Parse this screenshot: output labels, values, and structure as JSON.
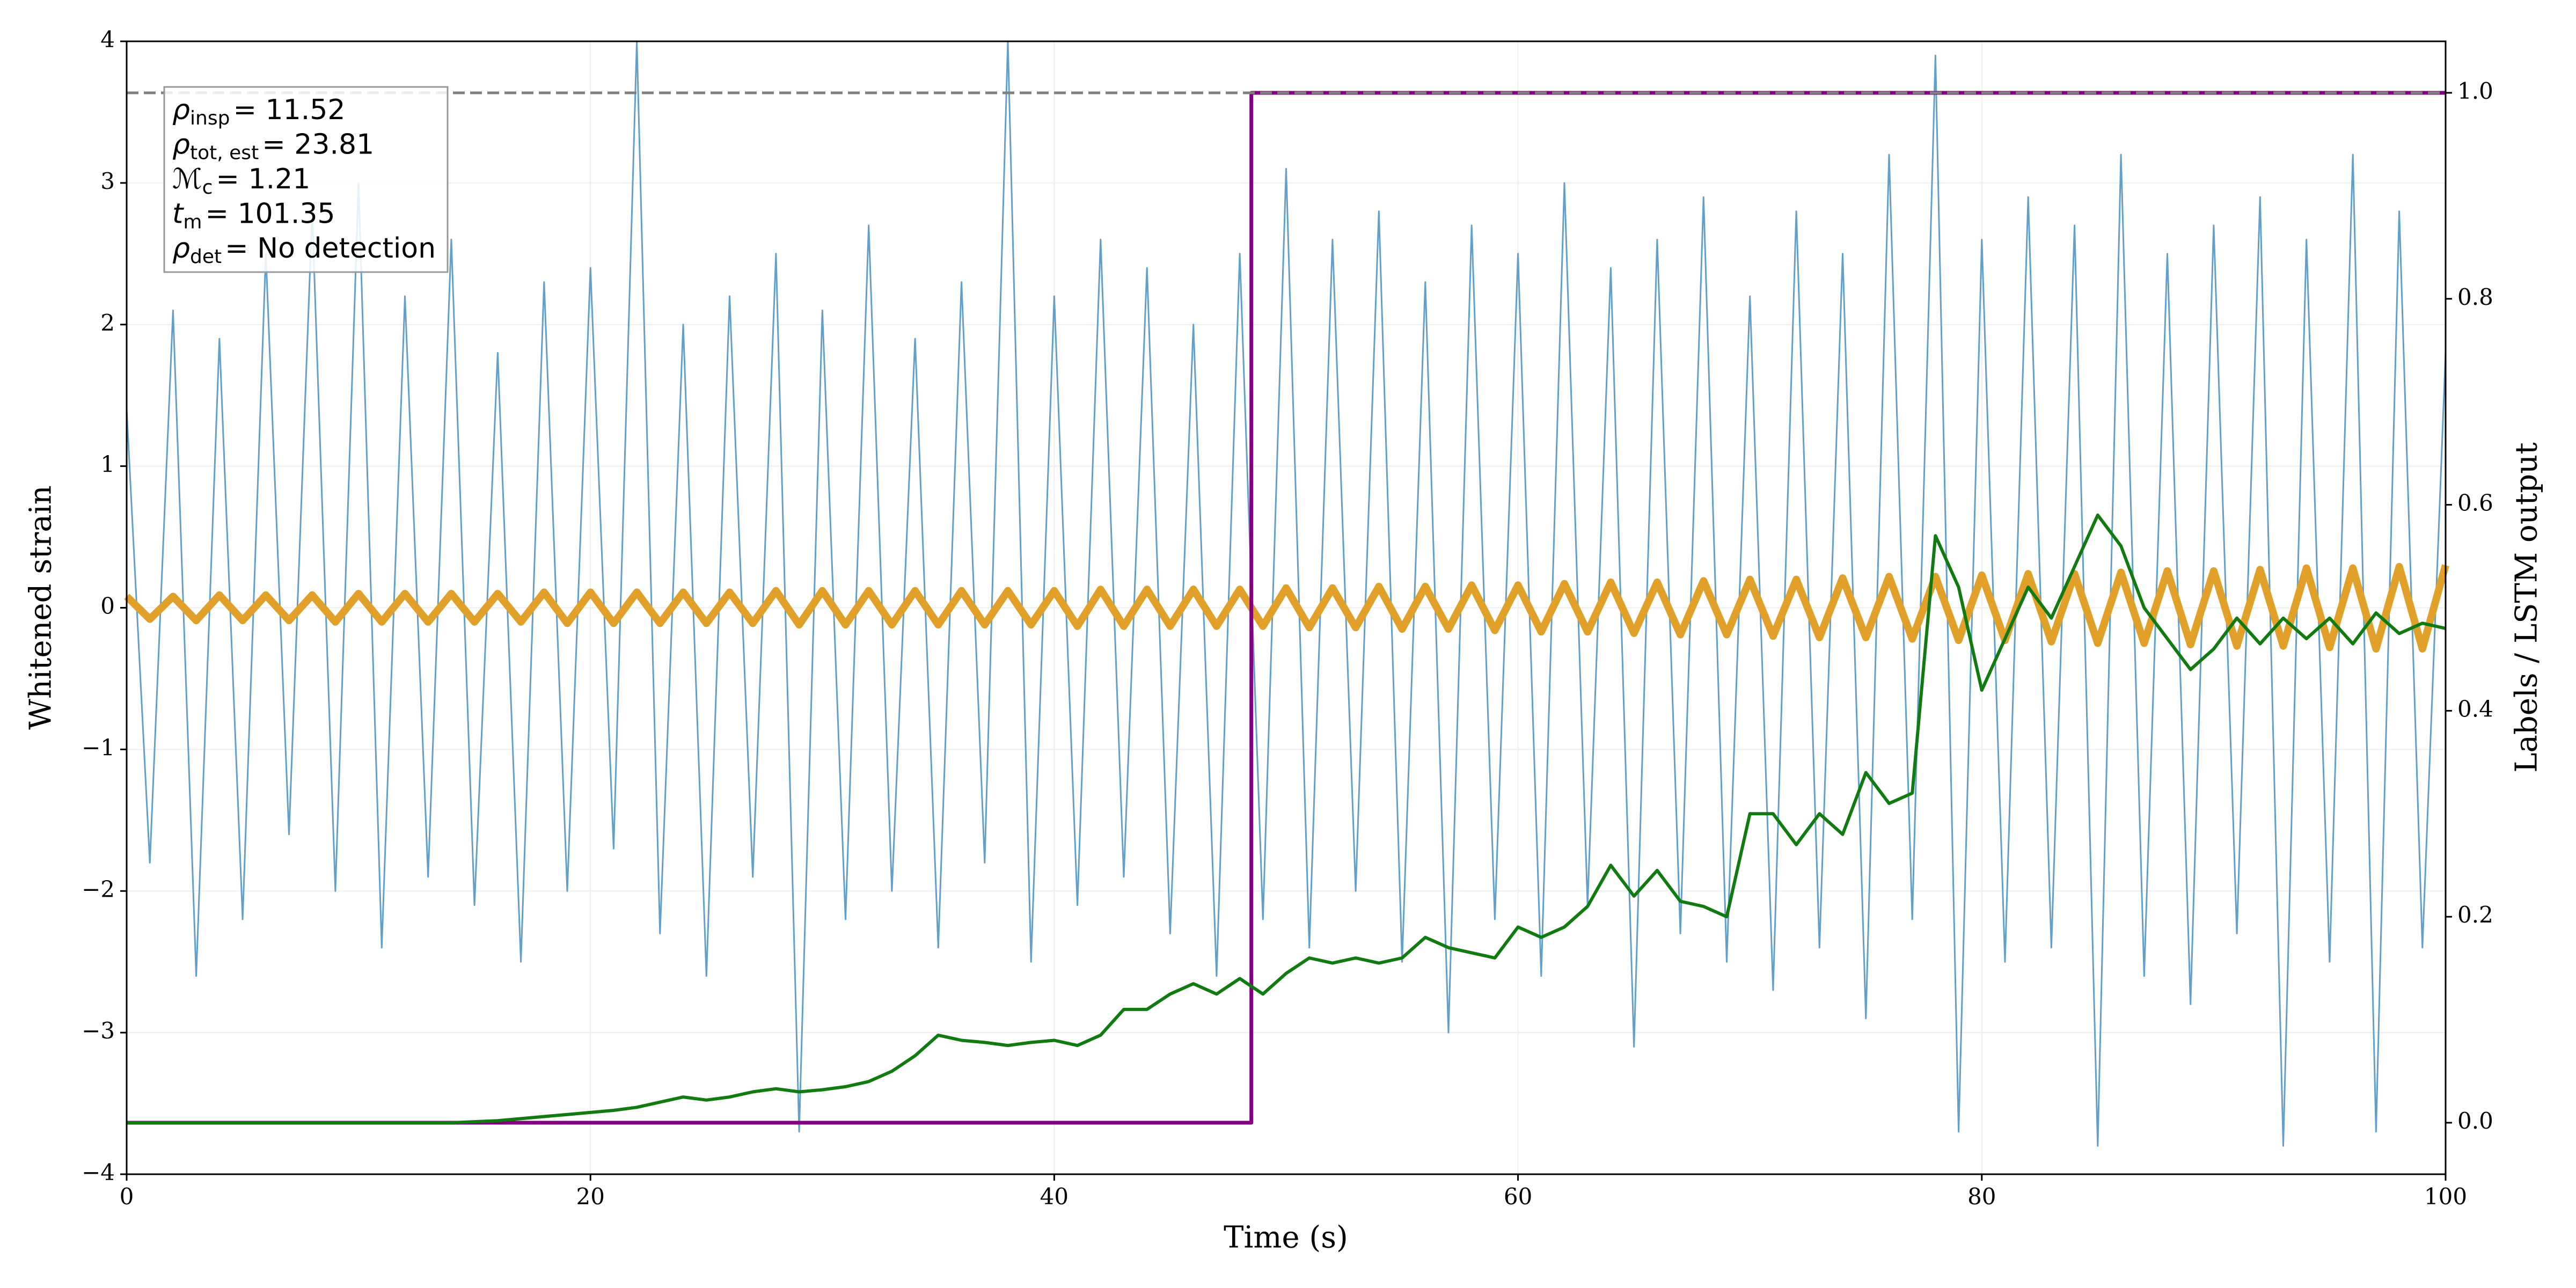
{
  "chart_data": {
    "type": "line",
    "xlabel": "Time (s)",
    "ylabel": "Whitened strain",
    "y2label": "Labels / LSTM output",
    "xlim": [
      0,
      100
    ],
    "xticks": [
      0,
      20,
      40,
      60,
      80,
      100
    ],
    "ylim": [
      -4,
      4
    ],
    "yticks": [
      {
        "value": -4,
        "label": "−4"
      },
      {
        "value": -3,
        "label": "−3"
      },
      {
        "value": -2,
        "label": "−2"
      },
      {
        "value": -1,
        "label": "−1"
      },
      0,
      1,
      2,
      3,
      4
    ],
    "y2lim": [
      -0.05,
      1.05
    ],
    "y2ticks": [
      {
        "value": 0,
        "label": "0.0"
      },
      0.2,
      0.4,
      0.6,
      0.8,
      {
        "value": 1,
        "label": "1.0"
      }
    ],
    "grid": true,
    "x": [
      0,
      1,
      2,
      3,
      4,
      5,
      6,
      7,
      8,
      9,
      10,
      11,
      12,
      13,
      14,
      15,
      16,
      17,
      18,
      19,
      20,
      21,
      22,
      23,
      24,
      25,
      26,
      27,
      28,
      29,
      30,
      31,
      32,
      33,
      34,
      35,
      36,
      37,
      38,
      39,
      40,
      41,
      42,
      43,
      44,
      45,
      46,
      47,
      48,
      49,
      50,
      51,
      52,
      53,
      54,
      55,
      56,
      57,
      58,
      59,
      60,
      61,
      62,
      63,
      64,
      65,
      66,
      67,
      68,
      69,
      70,
      71,
      72,
      73,
      74,
      75,
      76,
      77,
      78,
      79,
      80,
      81,
      82,
      83,
      84,
      85,
      86,
      87,
      88,
      89,
      90,
      91,
      92,
      93,
      94,
      95,
      96,
      97,
      98,
      99,
      100
    ],
    "series": [
      {
        "color": "#62a0cc",
        "axis": "y",
        "width": 3,
        "values": [
          1.4,
          -1.8,
          2.1,
          -2.6,
          1.9,
          -2.2,
          2.5,
          -1.6,
          2.8,
          -2.0,
          3.0,
          -2.4,
          2.2,
          -1.9,
          2.6,
          -2.1,
          1.8,
          -2.5,
          2.3,
          -2.0,
          2.4,
          -1.7,
          4.0,
          -2.3,
          2.0,
          -2.6,
          2.2,
          -1.9,
          2.5,
          -3.7,
          2.1,
          -2.2,
          2.7,
          -2.0,
          1.9,
          -2.4,
          2.3,
          -1.8,
          4.0,
          -2.5,
          2.2,
          -2.1,
          2.6,
          -1.9,
          2.4,
          -2.3,
          2.0,
          -2.6,
          2.5,
          -2.2,
          3.1,
          -2.4,
          2.6,
          -2.0,
          2.8,
          -2.5,
          2.3,
          -3.0,
          2.7,
          -2.2,
          2.5,
          -2.6,
          3.0,
          -2.1,
          2.4,
          -3.1,
          2.6,
          -2.3,
          2.9,
          -2.5,
          2.2,
          -2.7,
          2.8,
          -2.4,
          2.5,
          -2.9,
          3.2,
          -2.2,
          3.9,
          -3.7,
          2.6,
          -2.5,
          2.9,
          -2.4,
          2.7,
          -3.8,
          3.2,
          -2.6,
          2.5,
          -2.8,
          2.7,
          -2.3,
          2.9,
          -3.8,
          2.6,
          -2.5,
          3.2,
          -3.7,
          2.8,
          -2.4,
          1.8
        ]
      },
      {
        "color": "#e0a02a",
        "axis": "y",
        "width": 14,
        "values": [
          0.08,
          -0.08,
          0.08,
          -0.09,
          0.09,
          -0.09,
          0.09,
          -0.09,
          0.09,
          -0.1,
          0.1,
          -0.1,
          0.1,
          -0.1,
          0.1,
          -0.1,
          0.1,
          -0.1,
          0.11,
          -0.11,
          0.11,
          -0.11,
          0.11,
          -0.11,
          0.11,
          -0.11,
          0.11,
          -0.11,
          0.12,
          -0.12,
          0.12,
          -0.12,
          0.12,
          -0.12,
          0.12,
          -0.12,
          0.12,
          -0.12,
          0.12,
          -0.12,
          0.12,
          -0.13,
          0.13,
          -0.13,
          0.13,
          -0.13,
          0.13,
          -0.13,
          0.13,
          -0.13,
          0.14,
          -0.14,
          0.14,
          -0.14,
          0.15,
          -0.15,
          0.15,
          -0.15,
          0.16,
          -0.16,
          0.16,
          -0.17,
          0.17,
          -0.17,
          0.18,
          -0.18,
          0.18,
          -0.19,
          0.19,
          -0.19,
          0.2,
          -0.2,
          0.2,
          -0.21,
          0.21,
          -0.21,
          0.22,
          -0.22,
          0.22,
          -0.23,
          0.23,
          -0.23,
          0.24,
          -0.24,
          0.24,
          -0.25,
          0.25,
          -0.25,
          0.26,
          -0.26,
          0.26,
          -0.27,
          0.27,
          -0.27,
          0.28,
          -0.28,
          0.28,
          -0.29,
          0.29,
          -0.29,
          0.3
        ]
      },
      {
        "color": "#800080",
        "axis": "y2",
        "width": 7,
        "x": [
          0,
          48.5,
          48.5,
          100
        ],
        "values": [
          0,
          0,
          1,
          1
        ]
      },
      {
        "color": "#117a11",
        "axis": "y2",
        "width": 6,
        "values": [
          0,
          0,
          0,
          0,
          0,
          0,
          0,
          0,
          0,
          0,
          0,
          0,
          0,
          0,
          0,
          0.001,
          0.002,
          0.004,
          0.006,
          0.008,
          0.01,
          0.012,
          0.015,
          0.02,
          0.025,
          0.022,
          0.025,
          0.03,
          0.033,
          0.03,
          0.032,
          0.035,
          0.04,
          0.05,
          0.065,
          0.085,
          0.08,
          0.078,
          0.075,
          0.078,
          0.08,
          0.075,
          0.085,
          0.11,
          0.11,
          0.125,
          0.135,
          0.125,
          0.14,
          0.125,
          0.145,
          0.16,
          0.155,
          0.16,
          0.155,
          0.16,
          0.18,
          0.17,
          0.165,
          0.16,
          0.19,
          0.18,
          0.19,
          0.21,
          0.25,
          0.22,
          0.245,
          0.215,
          0.21,
          0.2,
          0.3,
          0.3,
          0.27,
          0.3,
          0.28,
          0.34,
          0.31,
          0.32,
          0.57,
          0.52,
          0.42,
          0.47,
          0.52,
          0.49,
          0.54,
          0.59,
          0.56,
          0.5,
          0.47,
          0.44,
          0.46,
          0.49,
          0.465,
          0.49,
          0.47,
          0.49,
          0.465,
          0.495,
          0.475,
          0.485,
          0.48
        ]
      }
    ],
    "reference_line": {
      "axis": "y2",
      "value": 1,
      "color": "#808080"
    },
    "annotation": [
      {
        "symbol": "ρ",
        "sub": "insp",
        "text": "= 11.52"
      },
      {
        "symbol": "ρ",
        "sub": "tot, est",
        "text": "= 23.81"
      },
      {
        "symbol": "ℳ",
        "sub": "c",
        "text": "= 1.21"
      },
      {
        "symbol": "t",
        "sub": "m",
        "text": "= 101.35"
      },
      {
        "symbol": "ρ",
        "sub": "det",
        "text": "= No detection"
      }
    ]
  }
}
